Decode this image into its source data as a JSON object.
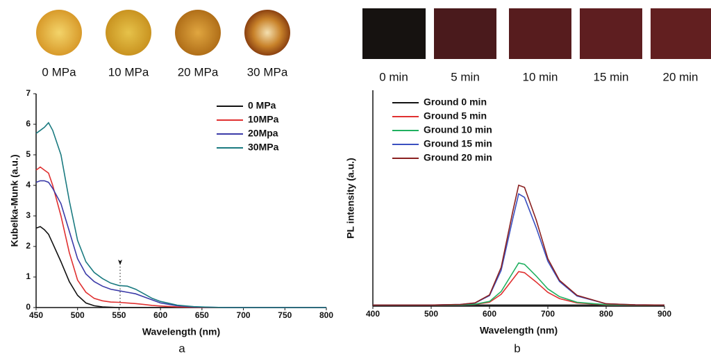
{
  "chart_data": [
    {
      "type": "line",
      "xlabel": "Wavelength (nm)",
      "ylabel": "Kubelka-Munk (a.u.)",
      "legend": "upper right",
      "x": [
        450,
        455,
        460,
        465,
        470,
        480,
        490,
        500,
        510,
        520,
        530,
        540,
        550,
        560,
        570,
        580,
        590,
        600,
        620,
        640,
        660,
        680,
        700,
        750,
        800
      ],
      "series": [
        {
          "name": "0 MPa",
          "color": "#111111",
          "values": [
            2.6,
            2.65,
            2.55,
            2.4,
            2.1,
            1.5,
            0.85,
            0.4,
            0.15,
            0.06,
            0.02,
            0.01,
            0,
            0,
            0,
            0,
            0,
            0,
            0,
            0,
            0,
            0,
            0,
            0,
            0
          ]
        },
        {
          "name": "10MPa",
          "color": "#e03030",
          "values": [
            4.5,
            4.6,
            4.5,
            4.4,
            4.0,
            3.0,
            1.8,
            0.9,
            0.5,
            0.3,
            0.22,
            0.18,
            0.17,
            0.15,
            0.13,
            0.1,
            0.07,
            0.05,
            0.02,
            0.01,
            0,
            0,
            0,
            0,
            0
          ]
        },
        {
          "name": "20Mpa",
          "color": "#3a3aa8",
          "values": [
            4.1,
            4.15,
            4.15,
            4.1,
            3.9,
            3.4,
            2.5,
            1.6,
            1.1,
            0.85,
            0.7,
            0.6,
            0.55,
            0.5,
            0.45,
            0.35,
            0.25,
            0.15,
            0.06,
            0.02,
            0.01,
            0,
            0,
            0,
            0
          ]
        },
        {
          "name": "30MPa",
          "color": "#1a7a80",
          "values": [
            5.7,
            5.8,
            5.9,
            6.05,
            5.8,
            5.0,
            3.5,
            2.2,
            1.5,
            1.15,
            0.95,
            0.8,
            0.72,
            0.7,
            0.6,
            0.45,
            0.3,
            0.2,
            0.08,
            0.03,
            0.01,
            0,
            0,
            0,
            0
          ]
        }
      ],
      "xlim": [
        450,
        800
      ],
      "xticks": [
        450,
        500,
        550,
        600,
        650,
        700,
        750,
        800
      ],
      "ylim": [
        0,
        7
      ],
      "yticks": [
        0,
        1,
        2,
        3,
        4,
        5,
        6,
        7
      ]
    },
    {
      "type": "line",
      "xlabel": "Wavelength (nm)",
      "ylabel": "PL intensity (a.u.)",
      "legend": "upper left",
      "x": [
        400,
        450,
        500,
        550,
        575,
        600,
        620,
        640,
        650,
        660,
        680,
        700,
        720,
        750,
        800,
        850,
        900
      ],
      "series": [
        {
          "name": "Ground 0 min",
          "color": "#111111",
          "values": [
            0.5,
            0.5,
            0.5,
            0.5,
            0.5,
            0.5,
            0.5,
            0.5,
            0.5,
            0.5,
            0.5,
            0.5,
            0.5,
            0.5,
            0.5,
            0.5,
            0.5
          ]
        },
        {
          "name": "Ground 5 min",
          "color": "#e03030",
          "values": [
            0.5,
            0.5,
            0.5,
            0.6,
            0.8,
            1.8,
            5.5,
            12.5,
            16,
            15.5,
            11.2,
            6.4,
            3.5,
            1.5,
            0.6,
            0.5,
            0.5
          ]
        },
        {
          "name": "Ground 10 min",
          "color": "#20b060",
          "values": [
            0.5,
            0.5,
            0.5,
            0.6,
            0.9,
            2.2,
            6.8,
            15.6,
            20,
            19.4,
            14,
            8,
            4.4,
            1.8,
            0.7,
            0.5,
            0.5
          ]
        },
        {
          "name": "Ground 15 min",
          "color": "#3a50c0",
          "values": [
            0.5,
            0.5,
            0.5,
            0.8,
            1.4,
            4.9,
            16.6,
            40.6,
            52,
            50.4,
            36.4,
            20.8,
            11.4,
            4.7,
            1.1,
            0.6,
            0.5
          ]
        },
        {
          "name": "Ground 20 min",
          "color": "#8a2020",
          "values": [
            0.5,
            0.5,
            0.5,
            0.8,
            1.5,
            5.2,
            18,
            44,
            56,
            55,
            40,
            22,
            12,
            5,
            1.1,
            0.6,
            0.5
          ]
        }
      ],
      "xlim": [
        400,
        900
      ],
      "xticks": [
        400,
        500,
        600,
        700,
        800,
        900
      ],
      "ylim": [
        0,
        100
      ]
    }
  ],
  "panels": [
    {
      "label": "a",
      "image_labels": [
        "0 MPa",
        "10 MPa",
        "20 MPa",
        "30 MPa"
      ]
    },
    {
      "label": "b",
      "image_labels": [
        "0 min",
        "5 min",
        "10 min",
        "15 min",
        "20 min"
      ]
    }
  ]
}
